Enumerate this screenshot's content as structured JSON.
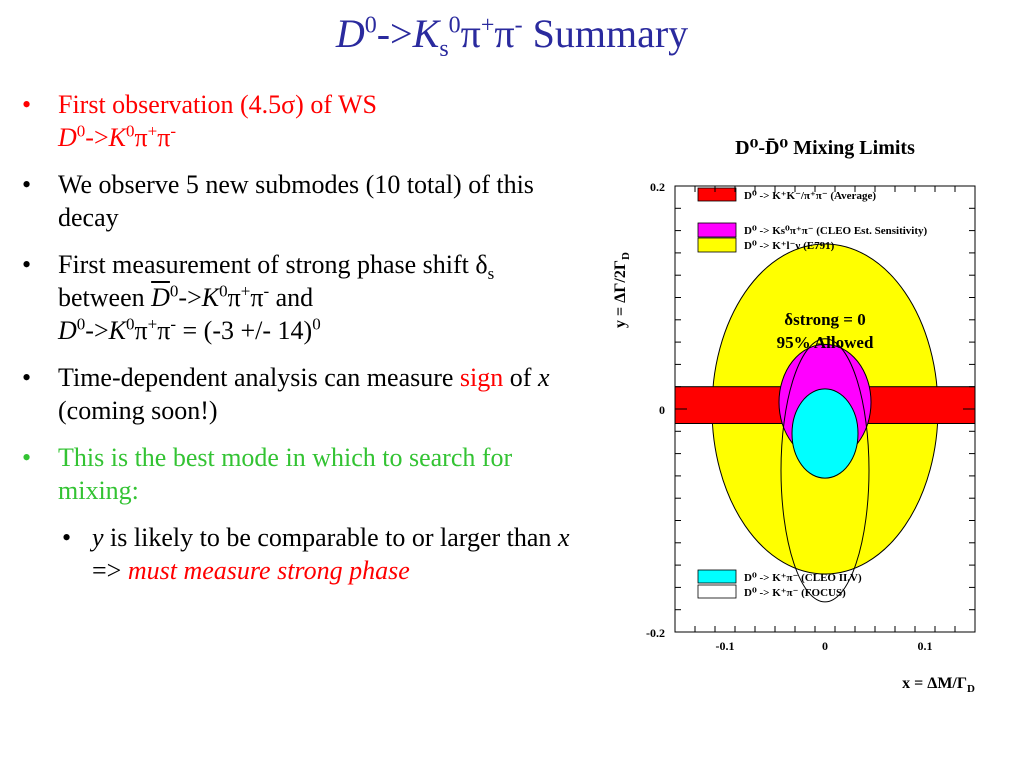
{
  "slide": {
    "title": {
      "D": "D",
      "D_sup": "0",
      "arrow": "->",
      "K": "K",
      "K_sub": "s",
      "K_sup": "0",
      "pi1": "π",
      "pi1_sup": "+",
      "pi2": "π",
      "pi2_sup": "-",
      "rest": " Summary"
    },
    "bullets": {
      "b1": {
        "dot": "•",
        "text": "First observation (4.5σ) of WS",
        "D": "D",
        "D_sup": "0",
        "arrow": "->",
        "K": "K",
        "K_sup": "0",
        "pi1": "π",
        "pi1_sup": "+",
        "pi2": "π",
        "pi2_sup": "-"
      },
      "b2": {
        "dot": "•",
        "text": "We observe 5 new submodes (10 total) of this decay"
      },
      "b3": {
        "dot": "•",
        "text_a": "First measurement of strong phase shift δ",
        "text_a_sub": "s",
        "text_b": " between ",
        "D1": "D",
        "D1_sup": "0",
        "arrow1": "->",
        "K1": "K",
        "K1_sup": "0",
        "pi1": "π",
        "pi1_sup": "+",
        "pi2": "π",
        "pi2_sup": "-",
        "and": " and",
        "D2": "D",
        "D2_sup": "0",
        "arrow2": "->",
        "K2": "K",
        "K2_sup": "0",
        "pi3": "π",
        "pi3_sup": "+",
        "pi4": "π",
        "pi4_sup": "-",
        "result": " = (-3 +/- 14)",
        "result_sup": "0"
      },
      "b4": {
        "dot": "•",
        "text_a": "Time-dependent analysis can measure ",
        "sign": "sign",
        "text_b": " of ",
        "x": "x",
        "text_c": " (coming soon!)"
      },
      "b5": {
        "dot": "•",
        "text": "This is the best mode in which to search for mixing:"
      },
      "b6": {
        "dot": "•",
        "y": "y",
        "text_a": " is likely to be comparable to or larger than ",
        "x": "x",
        "text_b": " => ",
        "emph": "must measure strong phase"
      }
    }
  },
  "chart_data": {
    "type": "diagram",
    "title": "D⁰-D̄⁰ Mixing Limits",
    "xlabel": "x = ΔM/Γ",
    "xlabel_sub": "D",
    "ylabel": "y = ΔΓ/2Γ",
    "ylabel_sub": "D",
    "xlim": [
      -0.15,
      0.15
    ],
    "ylim": [
      -0.2,
      0.2
    ],
    "x_ticks": [
      "-0.1",
      "0",
      "0.1"
    ],
    "y_ticks": [
      "0.2",
      "0",
      "-0.2"
    ],
    "regions": [
      {
        "name": "Average",
        "color": "#ff0000",
        "shape": "band",
        "y_range": [
          -0.013,
          0.02
        ]
      },
      {
        "name": "E791",
        "color": "#ffff00",
        "shape": "ellipse",
        "center": [
          0,
          0
        ],
        "radii": [
          0.113,
          0.148
        ]
      },
      {
        "name": "CLEO Est. Sensitivity",
        "color": "#ff00ff",
        "shape": "ellipse",
        "center": [
          0,
          0.006
        ],
        "radii": [
          0.046,
          0.052
        ]
      },
      {
        "name": "CLEO II.V",
        "color": "#00ffff",
        "shape": "ellipse",
        "center": [
          0,
          -0.022
        ],
        "radii": [
          0.033,
          0.04
        ]
      },
      {
        "name": "FOCUS",
        "color": "#ffffff",
        "shape": "ellipse",
        "center": [
          0,
          -0.055
        ],
        "radii": [
          0.044,
          0.118
        ]
      }
    ],
    "legend": [
      {
        "color": "#ff0000",
        "label": "D⁰ -> K⁺K⁻/π⁺π⁻ (Average)"
      },
      {
        "color": "#ff00ff",
        "label": "D⁰ -> Ks⁰π⁺π⁻ (CLEO Est. Sensitivity)"
      },
      {
        "color": "#ffff00",
        "label": "D⁰ -> K⁺l⁻ν (E791)"
      },
      {
        "color": "#00ffff",
        "label": "D⁰ -> K⁺π⁻ (CLEO II.V)"
      },
      {
        "color": "#ffffff",
        "label": "D⁰ -> K⁺π⁻ (FOCUS)"
      }
    ],
    "annotation_1": "δstrong = 0",
    "annotation_2": "95% Allowed"
  }
}
